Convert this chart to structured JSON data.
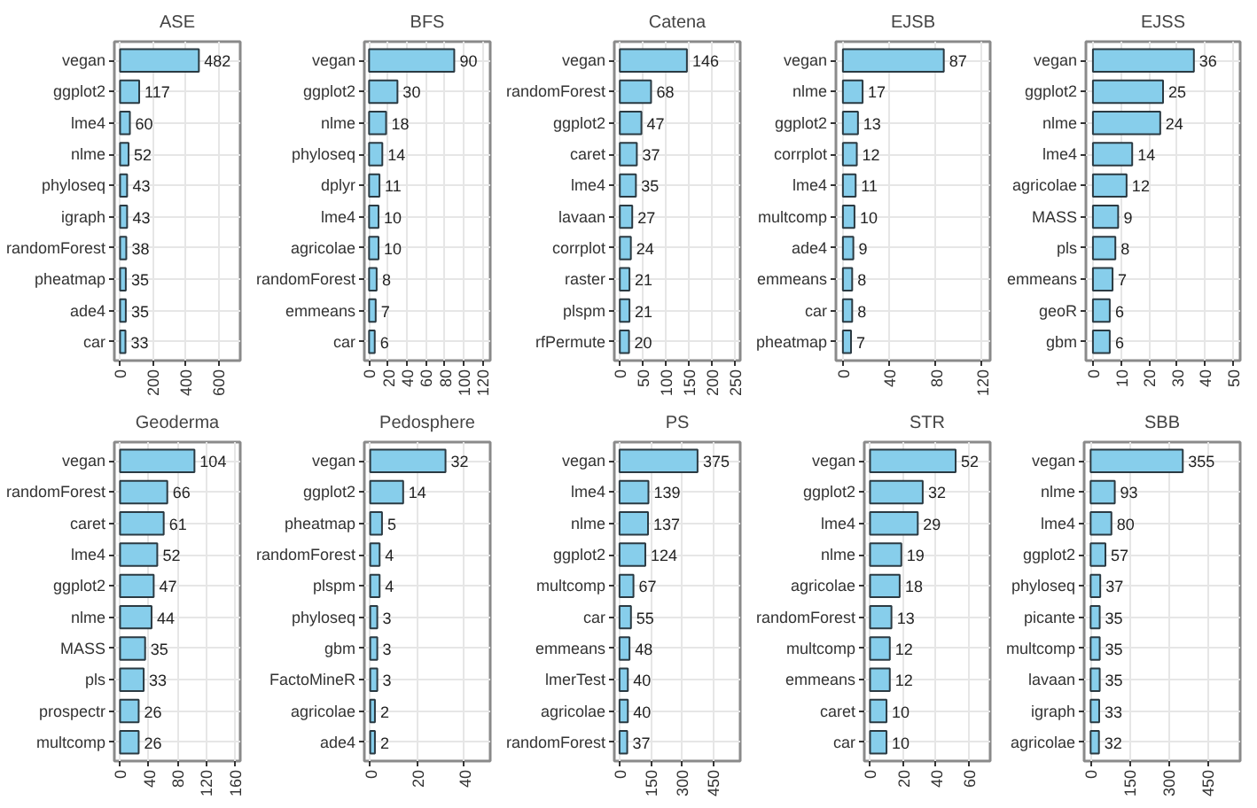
{
  "chart_data": [
    {
      "type": "bar",
      "orientation": "horizontal",
      "title": "ASE",
      "categories": [
        "vegan",
        "ggplot2",
        "lme4",
        "nlme",
        "phyloseq",
        "igraph",
        "randomForest",
        "pheatmap",
        "ade4",
        "car"
      ],
      "values": [
        482,
        117,
        60,
        52,
        43,
        43,
        38,
        35,
        35,
        33
      ],
      "color": "#87ceeb",
      "xlim": [
        -35,
        735
      ],
      "xticks": [
        0,
        200,
        400,
        600
      ],
      "grid": true,
      "data_labels": true
    },
    {
      "type": "bar",
      "orientation": "horizontal",
      "title": "BFS",
      "categories": [
        "vegan",
        "ggplot2",
        "nlme",
        "phyloseq",
        "dplyr",
        "lme4",
        "agricolae",
        "randomForest",
        "emmeans",
        "car"
      ],
      "values": [
        90,
        30,
        18,
        14,
        11,
        10,
        10,
        8,
        7,
        6
      ],
      "color": "#87ceeb",
      "xlim": [
        -5,
        128
      ],
      "xticks": [
        0,
        20,
        40,
        60,
        80,
        100,
        120
      ],
      "grid": true,
      "data_labels": true
    },
    {
      "type": "bar",
      "orientation": "horizontal",
      "title": "Catena",
      "categories": [
        "vegan",
        "randomForest",
        "ggplot2",
        "caret",
        "lme4",
        "lavaan",
        "corrplot",
        "raster",
        "plspm",
        "rfPermute"
      ],
      "values": [
        146,
        68,
        47,
        37,
        35,
        27,
        24,
        21,
        21,
        20
      ],
      "color": "#87ceeb",
      "xlim": [
        -12,
        262
      ],
      "xticks": [
        0,
        50,
        100,
        150,
        200,
        250
      ],
      "grid": true,
      "data_labels": true
    },
    {
      "type": "bar",
      "orientation": "horizontal",
      "title": "EJSB",
      "categories": [
        "vegan",
        "nlme",
        "ggplot2",
        "corrplot",
        "lme4",
        "multcomp",
        "ade4",
        "emmeans",
        "car",
        "pheatmap"
      ],
      "values": [
        87,
        17,
        13,
        12,
        11,
        10,
        9,
        8,
        8,
        7
      ],
      "color": "#87ceeb",
      "xlim": [
        -6,
        127
      ],
      "xticks": [
        0,
        40,
        80,
        120
      ],
      "grid": true,
      "data_labels": true
    },
    {
      "type": "bar",
      "orientation": "horizontal",
      "title": "EJSS",
      "categories": [
        "vegan",
        "ggplot2",
        "nlme",
        "lme4",
        "agricolae",
        "MASS",
        "pls",
        "emmeans",
        "geoR",
        "gbm"
      ],
      "values": [
        36,
        25,
        24,
        14,
        12,
        9,
        8,
        7,
        6,
        6
      ],
      "color": "#87ceeb",
      "xlim": [
        -2.5,
        52.5
      ],
      "xticks": [
        0,
        10,
        20,
        30,
        40,
        50
      ],
      "grid": true,
      "data_labels": true
    },
    {
      "type": "bar",
      "orientation": "horizontal",
      "title": "Geoderma",
      "categories": [
        "vegan",
        "randomForest",
        "caret",
        "lme4",
        "ggplot2",
        "nlme",
        "MASS",
        "pls",
        "prospectr",
        "multcomp"
      ],
      "values": [
        104,
        66,
        61,
        52,
        47,
        44,
        35,
        33,
        26,
        26
      ],
      "color": "#87ceeb",
      "xlim": [
        -8,
        168
      ],
      "xticks": [
        0,
        40,
        80,
        120,
        160
      ],
      "grid": true,
      "data_labels": true
    },
    {
      "type": "bar",
      "orientation": "horizontal",
      "title": "Pedosphere",
      "categories": [
        "vegan",
        "ggplot2",
        "pheatmap",
        "randomForest",
        "plspm",
        "phyloseq",
        "gbm",
        "FactoMineR",
        "agricolae",
        "ade4"
      ],
      "values": [
        32,
        14,
        5,
        4,
        4,
        3,
        3,
        3,
        2,
        2
      ],
      "color": "#87ceeb",
      "xlim": [
        -2.5,
        51
      ],
      "xticks": [
        0,
        20,
        40
      ],
      "grid": true,
      "data_labels": true
    },
    {
      "type": "bar",
      "orientation": "horizontal",
      "title": "PS",
      "categories": [
        "vegan",
        "lme4",
        "nlme",
        "ggplot2",
        "multcomp",
        "car",
        "emmeans",
        "lmerTest",
        "agricolae",
        "randomForest"
      ],
      "values": [
        375,
        139,
        137,
        124,
        67,
        55,
        48,
        40,
        40,
        37
      ],
      "color": "#87ceeb",
      "xlim": [
        -25,
        580
      ],
      "xticks": [
        0,
        150,
        300,
        450
      ],
      "grid": true,
      "data_labels": true
    },
    {
      "type": "bar",
      "orientation": "horizontal",
      "title": "STR",
      "categories": [
        "vegan",
        "ggplot2",
        "lme4",
        "nlme",
        "agricolae",
        "randomForest",
        "multcomp",
        "emmeans",
        "caret",
        "car"
      ],
      "values": [
        52,
        32,
        29,
        19,
        18,
        13,
        12,
        12,
        10,
        10
      ],
      "color": "#87ceeb",
      "xlim": [
        -3.5,
        73
      ],
      "xticks": [
        0,
        20,
        40,
        60
      ],
      "grid": true,
      "data_labels": true
    },
    {
      "type": "bar",
      "orientation": "horizontal",
      "title": "SBB",
      "categories": [
        "vegan",
        "nlme",
        "lme4",
        "ggplot2",
        "phyloseq",
        "picante",
        "multcomp",
        "lavaan",
        "igraph",
        "agricolae"
      ],
      "values": [
        355,
        93,
        80,
        57,
        37,
        35,
        35,
        35,
        33,
        32
      ],
      "color": "#87ceeb",
      "xlim": [
        -25,
        576
      ],
      "xticks": [
        0,
        150,
        300,
        450
      ],
      "grid": true,
      "data_labels": true
    }
  ]
}
